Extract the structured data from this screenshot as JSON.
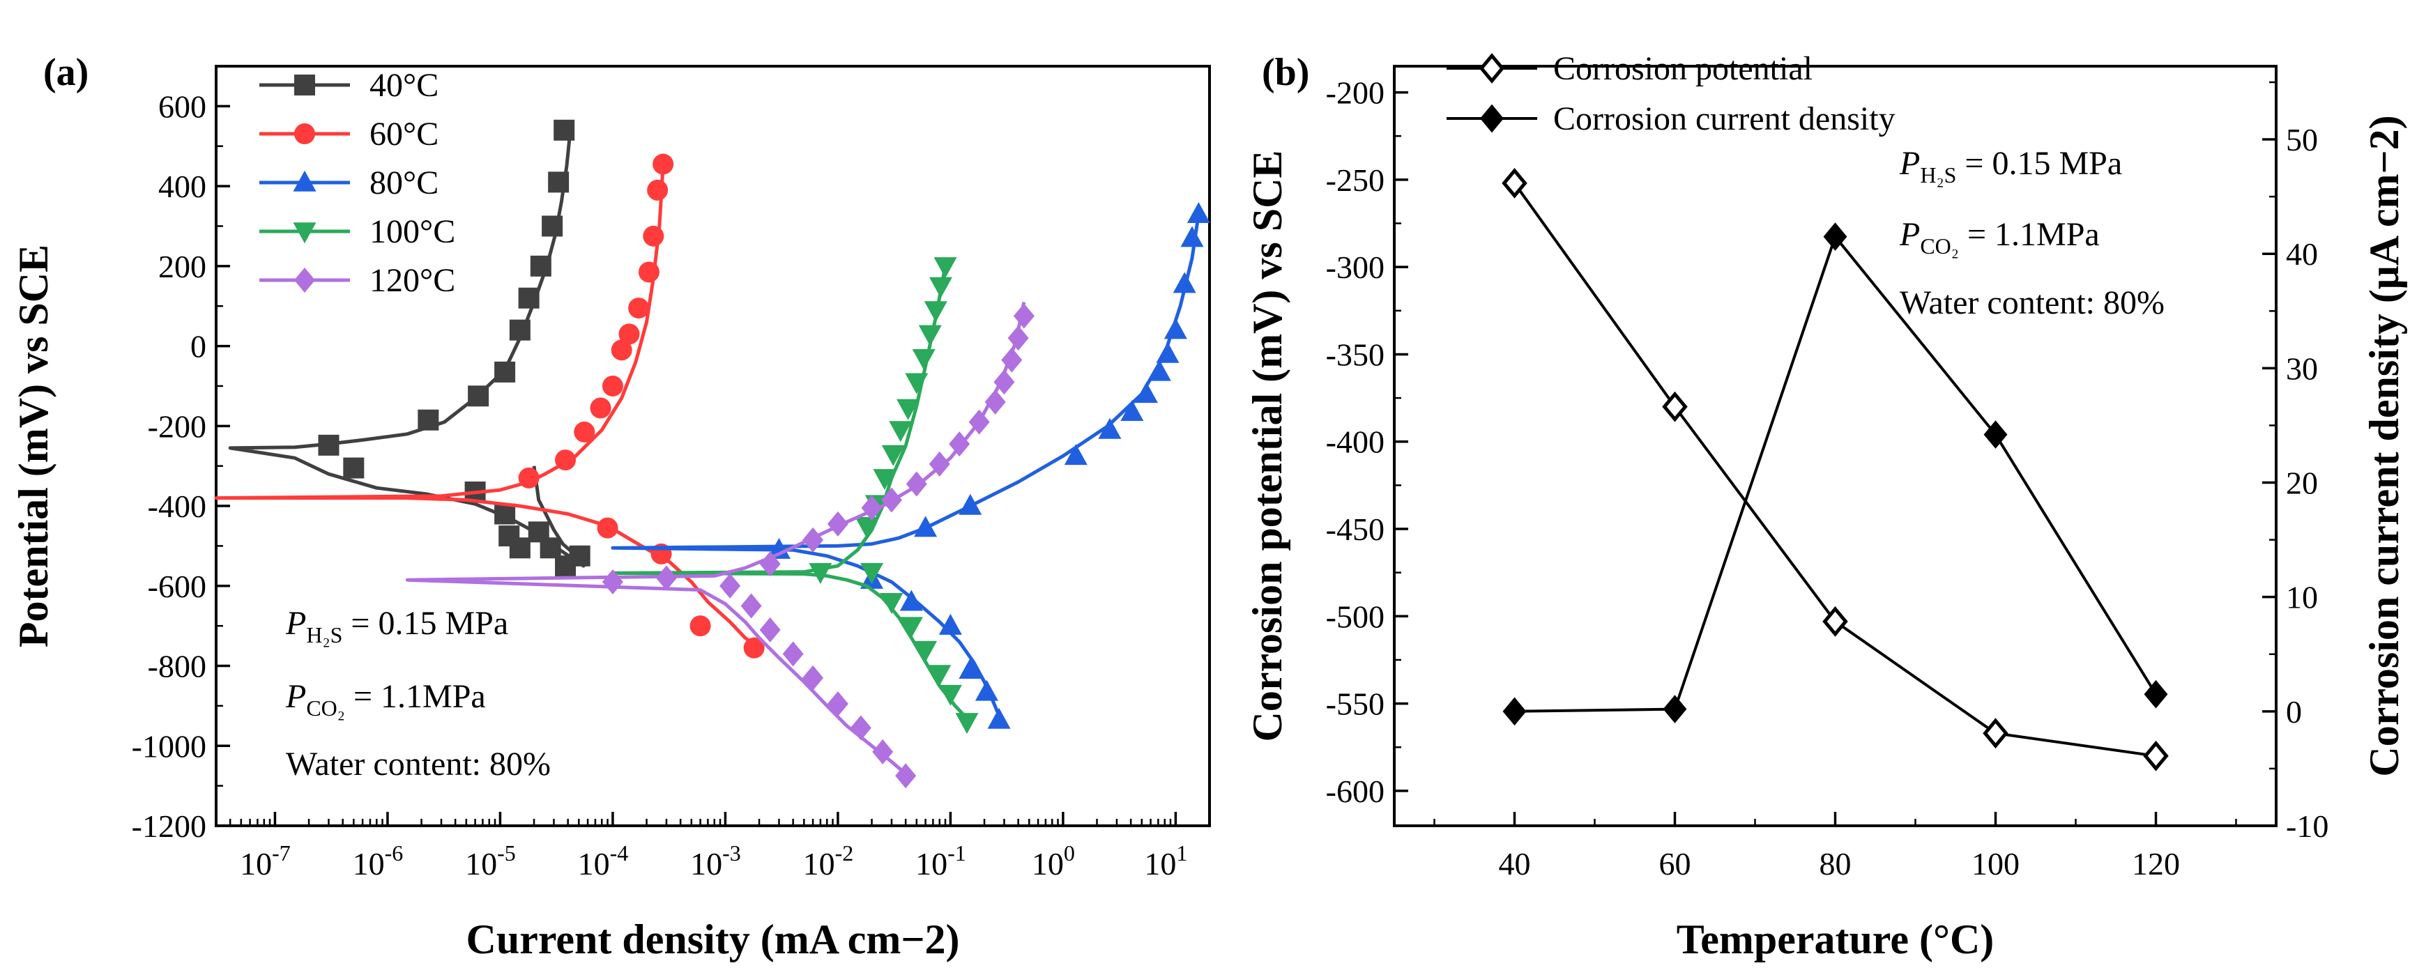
{
  "chart_data": [
    {
      "panel": "(a)",
      "type": "line",
      "x_scale": "log",
      "xlabel": "Current density (mA cm−2)",
      "ylabel": "Potential (mV) vs SCE",
      "xlim": [
        3e-08,
        20
      ],
      "ylim": [
        -1200,
        700
      ],
      "x_ticks": [
        1e-07,
        1e-06,
        1e-05,
        0.0001,
        0.001,
        0.01,
        0.1,
        1,
        10
      ],
      "x_tick_labels": [
        {
          "base": "10",
          "exp": "-7"
        },
        {
          "base": "10",
          "exp": "-6"
        },
        {
          "base": "10",
          "exp": "-5"
        },
        {
          "base": "10",
          "exp": "-4"
        },
        {
          "base": "10",
          "exp": "-3"
        },
        {
          "base": "10",
          "exp": "-2"
        },
        {
          "base": "10",
          "exp": "-1"
        },
        {
          "base": "10",
          "exp": "0"
        },
        {
          "base": "10",
          "exp": "1"
        }
      ],
      "y_ticks": [
        -1200,
        -1000,
        -800,
        -600,
        -400,
        -200,
        0,
        200,
        400,
        600
      ],
      "y_tick_labels": [
        "-1200",
        "-1000",
        "-800",
        "-600",
        "-400",
        "-200",
        "0",
        "200",
        "400",
        "600"
      ],
      "legend_position": "top-left",
      "annotations": [
        {
          "prefix": "P",
          "sub": "H₂S",
          "suffix": " = 0.15 MPa"
        },
        {
          "prefix": "P",
          "sub": "CO₂",
          "suffix": " = 1.1MPa"
        },
        {
          "prefix": "Water content: 80%",
          "sub": "",
          "suffix": ""
        }
      ],
      "series": [
        {
          "name": "40°C",
          "color": "#404040",
          "marker": "square",
          "x": [
            2e-05,
            2.2e-05,
            2.6e-05,
            3e-05,
            3.6e-05,
            5e-05,
            5.5e-05,
            3.2e-05,
            2.2e-05,
            1.2e-05,
            6e-06,
            2.2e-06,
            8e-07,
            3e-07,
            1.5e-07,
            4e-08,
            1.5e-07,
            3e-07,
            6e-07,
            1.5e-06,
            3.2e-06,
            6e-06,
            1.1e-05,
            1.5e-05,
            2e-05,
            2.6e-05,
            3.1e-05,
            3.5e-05,
            3.9e-05,
            4.2e-05
          ],
          "y": [
            -300,
            -385,
            -425,
            -460,
            -495,
            -530,
            -550,
            -505,
            -470,
            -430,
            -395,
            -370,
            -355,
            -320,
            -280,
            -255,
            -253,
            -245,
            -235,
            -220,
            -190,
            -130,
            -60,
            20,
            110,
            200,
            280,
            360,
            450,
            540
          ],
          "marker_x": [
            3e-07,
            5e-07,
            6e-06,
            1.1e-05,
            1.2e-05,
            1.5e-05,
            2.2e-05,
            2.8e-05,
            3.8e-05,
            5.1e-05,
            2.3e-06,
            6.4e-06,
            1.1e-05,
            1.5e-05,
            1.8e-05,
            2.3e-05,
            2.9e-05,
            3.3e-05,
            3.7e-05
          ],
          "marker_y": [
            -248,
            -305,
            -365,
            -420,
            -475,
            -505,
            -465,
            -505,
            -550,
            -525,
            -185,
            -125,
            -65,
            40,
            120,
            200,
            300,
            410,
            540
          ]
        },
        {
          "name": "60°C",
          "color": "#ff3b3b",
          "marker": "circle",
          "x": [
            0.002,
            0.0015,
            0.0011,
            0.0007,
            0.0005,
            0.00032,
            0.00018,
            9e-05,
            4e-05,
            1.5e-05,
            5e-06,
            1.5e-06,
            3e-08,
            3e-06,
            1e-05,
            1.8e-05,
            2.5e-05,
            4.5e-05,
            8e-05,
            0.00012,
            0.00016,
            0.0002,
            0.00023,
            0.00026,
            0.00028
          ],
          "y": [
            -755,
            -730,
            -690,
            -640,
            -590,
            -540,
            -500,
            -450,
            -420,
            -400,
            -385,
            -380,
            -380,
            -375,
            -360,
            -340,
            -320,
            -280,
            -210,
            -130,
            -40,
            60,
            170,
            300,
            450
          ],
          "marker_x": [
            0.0018,
            0.0006,
            0.00027,
            9e-05,
            1.8e-05,
            3.8e-05,
            5.6e-05,
            7.8e-05,
            0.0001,
            0.00012,
            0.00014,
            0.00017,
            0.00021,
            0.00023,
            0.00025,
            0.00028
          ],
          "marker_y": [
            -755,
            -700,
            -520,
            -455,
            -330,
            -285,
            -215,
            -155,
            -100,
            -10,
            30,
            95,
            185,
            275,
            390,
            455
          ]
        },
        {
          "name": "80°C",
          "color": "#2060e0",
          "marker": "triangle-up",
          "x": [
            0.28,
            0.24,
            0.2,
            0.16,
            0.12,
            0.08,
            0.05,
            0.03,
            0.015,
            0.008,
            0.004,
            0.0001,
            0.01,
            0.02,
            0.035,
            0.06,
            0.15,
            0.4,
            1,
            2.5,
            5,
            8,
            11,
            14,
            16
          ],
          "y": [
            -935,
            -890,
            -840,
            -790,
            -740,
            -690,
            -640,
            -590,
            -550,
            -525,
            -510,
            -505,
            -500,
            -495,
            -480,
            -455,
            -400,
            -340,
            -275,
            -200,
            -120,
            -20,
            100,
            220,
            330
          ],
          "marker_x": [
            0.27,
            0.21,
            0.15,
            0.1,
            0.045,
            0.02,
            0.003,
            0.06,
            0.15,
            1.3,
            2.6,
            4.1,
            5.5,
            7.2,
            8.5,
            10,
            12,
            14,
            16
          ],
          "marker_y": [
            -935,
            -865,
            -810,
            -700,
            -640,
            -585,
            -510,
            -455,
            -400,
            -275,
            -210,
            -165,
            -120,
            -65,
            -20,
            40,
            155,
            270,
            330
          ]
        },
        {
          "name": "100°C",
          "color": "#2aaa5a",
          "marker": "triangle-down",
          "x": [
            0.15,
            0.11,
            0.08,
            0.06,
            0.045,
            0.035,
            0.025,
            0.018,
            0.012,
            0.008,
            0.005,
            0.0001,
            0.005,
            0.01,
            0.015,
            0.02,
            0.025,
            0.03,
            0.04,
            0.05,
            0.06,
            0.075,
            0.09
          ],
          "y": [
            -940,
            -900,
            -850,
            -790,
            -730,
            -680,
            -630,
            -600,
            -585,
            -575,
            -570,
            -568,
            -565,
            -550,
            -510,
            -460,
            -400,
            -330,
            -250,
            -150,
            -50,
            80,
            200
          ],
          "marker_x": [
            0.14,
            0.1,
            0.08,
            0.06,
            0.045,
            0.03,
            0.02,
            0.007,
            0.018,
            0.022,
            0.026,
            0.031,
            0.036,
            0.042,
            0.05,
            0.058,
            0.066,
            0.074,
            0.082,
            0.09
          ],
          "marker_y": [
            -940,
            -870,
            -820,
            -760,
            -700,
            -640,
            -565,
            -565,
            -450,
            -395,
            -330,
            -270,
            -210,
            -155,
            -90,
            -30,
            30,
            90,
            150,
            200
          ]
        },
        {
          "name": "120°C",
          "color": "#b070e0",
          "marker": "diamond",
          "x": [
            0.042,
            0.03,
            0.02,
            0.012,
            0.008,
            0.005,
            0.003,
            0.002,
            0.0015,
            0.001,
            0.0006,
            1.5e-06,
            0.0008,
            0.0015,
            0.003,
            0.006,
            0.012,
            0.025,
            0.05,
            0.1,
            0.18,
            0.28,
            0.38,
            0.45
          ],
          "y": [
            -1075,
            -1040,
            -1000,
            -950,
            -900,
            -840,
            -780,
            -730,
            -690,
            -645,
            -610,
            -585,
            -575,
            -555,
            -520,
            -480,
            -440,
            -400,
            -350,
            -280,
            -190,
            -90,
            10,
            110
          ],
          "marker_x": [
            0.04,
            0.025,
            0.016,
            0.01,
            0.006,
            0.004,
            0.0025,
            0.0017,
            0.0011,
            0.0003,
            0.0001,
            0.0025,
            0.006,
            0.01,
            0.02,
            0.03,
            0.05,
            0.08,
            0.12,
            0.18,
            0.25,
            0.3,
            0.35,
            0.4,
            0.45
          ],
          "marker_y": [
            -1075,
            -1015,
            -955,
            -895,
            -830,
            -770,
            -710,
            -650,
            -600,
            -580,
            -590,
            -545,
            -485,
            -445,
            -405,
            -385,
            -345,
            -295,
            -245,
            -190,
            -140,
            -90,
            -35,
            20,
            75
          ]
        }
      ]
    },
    {
      "panel": "(b)",
      "type": "line",
      "xlabel": "Temperature (°C)",
      "ylabel": "Corrosion potential (mV) vs SCE",
      "y2label": "Corrosion current density (μA cm−2)",
      "xlim": [
        25,
        135
      ],
      "ylim": [
        -620,
        -185
      ],
      "y2lim": [
        -10,
        56.4
      ],
      "x_ticks": [
        40,
        60,
        80,
        100,
        120
      ],
      "x_tick_labels": [
        "40",
        "60",
        "80",
        "100",
        "120"
      ],
      "y_ticks": [
        -600,
        -550,
        -500,
        -450,
        -400,
        -350,
        -300,
        -250,
        -200
      ],
      "y_tick_labels": [
        "-600",
        "-550",
        "-500",
        "-450",
        "-400",
        "-350",
        "-300",
        "-250",
        "-200"
      ],
      "y2_ticks": [
        -10,
        0,
        10,
        20,
        30,
        40,
        50
      ],
      "y2_tick_labels": [
        "-10",
        "0",
        "10",
        "20",
        "30",
        "40",
        "50"
      ],
      "legend_position": "top-left",
      "annotations": [
        {
          "prefix": "P",
          "sub": "H₂S",
          "suffix": " = 0.15 MPa"
        },
        {
          "prefix": "P",
          "sub": "CO₂",
          "suffix": " = 1.1MPa"
        },
        {
          "prefix": "Water content: 80%",
          "sub": "",
          "suffix": ""
        }
      ],
      "series": [
        {
          "name": "Corrosion potential",
          "axis": "left",
          "marker": "diamond-open",
          "color": "#000000",
          "x": [
            40,
            60,
            80,
            100,
            120
          ],
          "y": [
            -252,
            -380,
            -503,
            -567,
            -580
          ]
        },
        {
          "name": "Corrosion current density",
          "axis": "right",
          "marker": "diamond-filled",
          "color": "#000000",
          "x": [
            40,
            60,
            80,
            100,
            120
          ],
          "y": [
            0,
            0.2,
            41.5,
            24.2,
            1.5
          ]
        }
      ]
    }
  ]
}
